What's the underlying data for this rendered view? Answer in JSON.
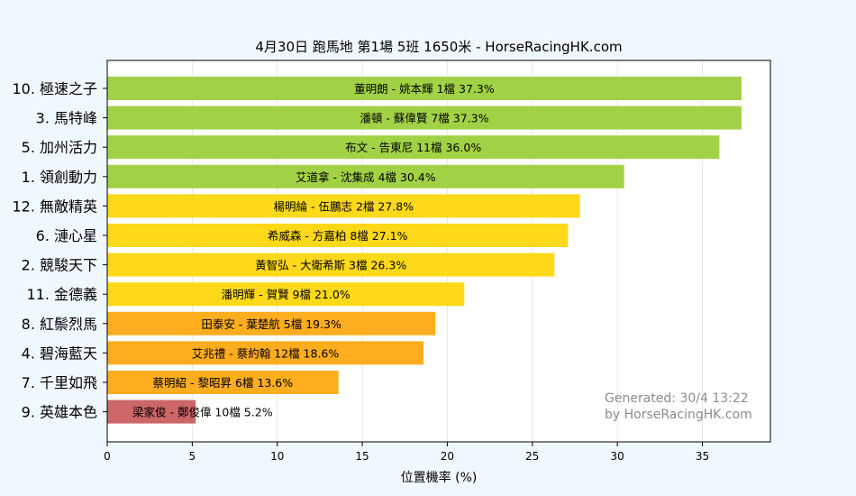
{
  "chart_data": {
    "type": "bar",
    "orientation": "horizontal",
    "title": "4月30日  跑馬地  第1場  5班  1650米 - HorseRacingHK.com",
    "xlabel": "位置機率 (%)",
    "ylabel": "",
    "xlim": [
      0,
      39
    ],
    "xticks": [
      "0",
      "5",
      "10",
      "15",
      "20",
      "25",
      "30",
      "35"
    ],
    "grid": "vertical",
    "categories": [
      "10. 極速之子",
      "3. 馬特峰",
      "5. 加州活力",
      "1. 領創動力",
      "12. 無敵精英",
      "6. 漣心星",
      "2. 競駿天下",
      "11. 金德義",
      "8. 紅鬃烈馬",
      "4. 碧海藍天",
      "7. 千里如飛",
      "9. 英雄本色"
    ],
    "values": [
      37.3,
      37.3,
      36.0,
      30.4,
      27.8,
      27.1,
      26.3,
      21.0,
      19.3,
      18.6,
      13.6,
      5.2
    ],
    "bar_labels": [
      "董明朗 - 姚本輝 1檔  37.3%",
      "潘頓 - 蘇偉賢 7檔  37.3%",
      "布文 - 告東尼 11檔  36.0%",
      "艾道拿 - 沈集成 4檔  30.4%",
      "楊明綸 - 伍鵬志 2檔  27.8%",
      "希威森 - 方嘉柏 8檔  27.1%",
      "黃智弘 - 大衛希斯 3檔  26.3%",
      "潘明輝 - 賀賢 9檔  21.0%",
      "田泰安 - 葉楚航 5檔  19.3%",
      "艾兆禮 - 蔡約翰 12檔  18.6%",
      "蔡明紹 - 黎昭昇 6檔  13.6%",
      "梁家俊 - 鄭俊偉 10檔  5.2%"
    ],
    "bar_colors": [
      "#a1d245",
      "#a1d245",
      "#a1d245",
      "#a1d245",
      "#fed919",
      "#fed919",
      "#fed919",
      "#fed919",
      "#fdad1e",
      "#fdad1e",
      "#fdad1e",
      "#cd6667"
    ],
    "watermark": [
      "Generated: 30/4 13:22",
      "by HorseRacingHK.com"
    ]
  },
  "colors": {
    "background": "#f0f8ff",
    "plot_background": "#ffffff",
    "grid": "#e3e8ee",
    "watermark": "#8c8c8c"
  }
}
